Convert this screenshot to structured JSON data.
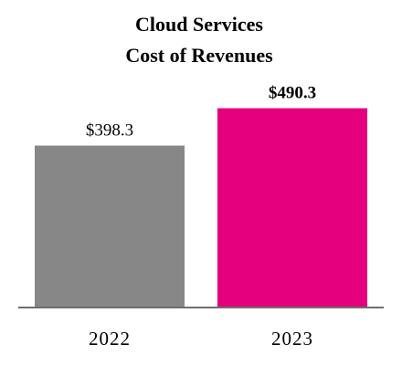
{
  "chart_data": {
    "type": "bar",
    "title_lines": [
      "Cloud Services",
      "Cost of Revenues"
    ],
    "categories": [
      "2022",
      "2023"
    ],
    "values": [
      398.3,
      490.3
    ],
    "data_labels": [
      "$398.3",
      "$490.3"
    ],
    "data_label_bold": [
      false,
      true
    ],
    "bar_colors": [
      "#878787",
      "#e5007d"
    ],
    "xlabel": "",
    "ylabel": "",
    "ylim": [
      0,
      541
    ],
    "grid": false,
    "legend": "none"
  },
  "colors": {
    "baseline": "#6e6e6e",
    "background": "#ffffff"
  }
}
